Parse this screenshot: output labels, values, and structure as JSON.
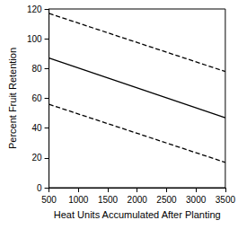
{
  "chart_data": {
    "type": "line",
    "x_label": "Heat Units Accumulated After Planting",
    "y_label": "Percent Fruit Retention",
    "x": [
      500,
      3500
    ],
    "series": [
      {
        "color": "#000000",
        "line_style": "dashed",
        "values": [
          117,
          78
        ]
      },
      {
        "color": "#000000",
        "line_style": "solid",
        "values": [
          87,
          47
        ]
      },
      {
        "color": "#000000",
        "line_style": "dashed",
        "values": [
          56,
          17
        ]
      }
    ],
    "xlim": [
      500,
      3500
    ],
    "xticks": [
      500,
      1000,
      1500,
      2000,
      2500,
      3000,
      3500
    ],
    "ylim": [
      0,
      120
    ],
    "yticks": [
      0,
      20,
      40,
      60,
      80,
      100,
      120
    ],
    "grid": false
  }
}
